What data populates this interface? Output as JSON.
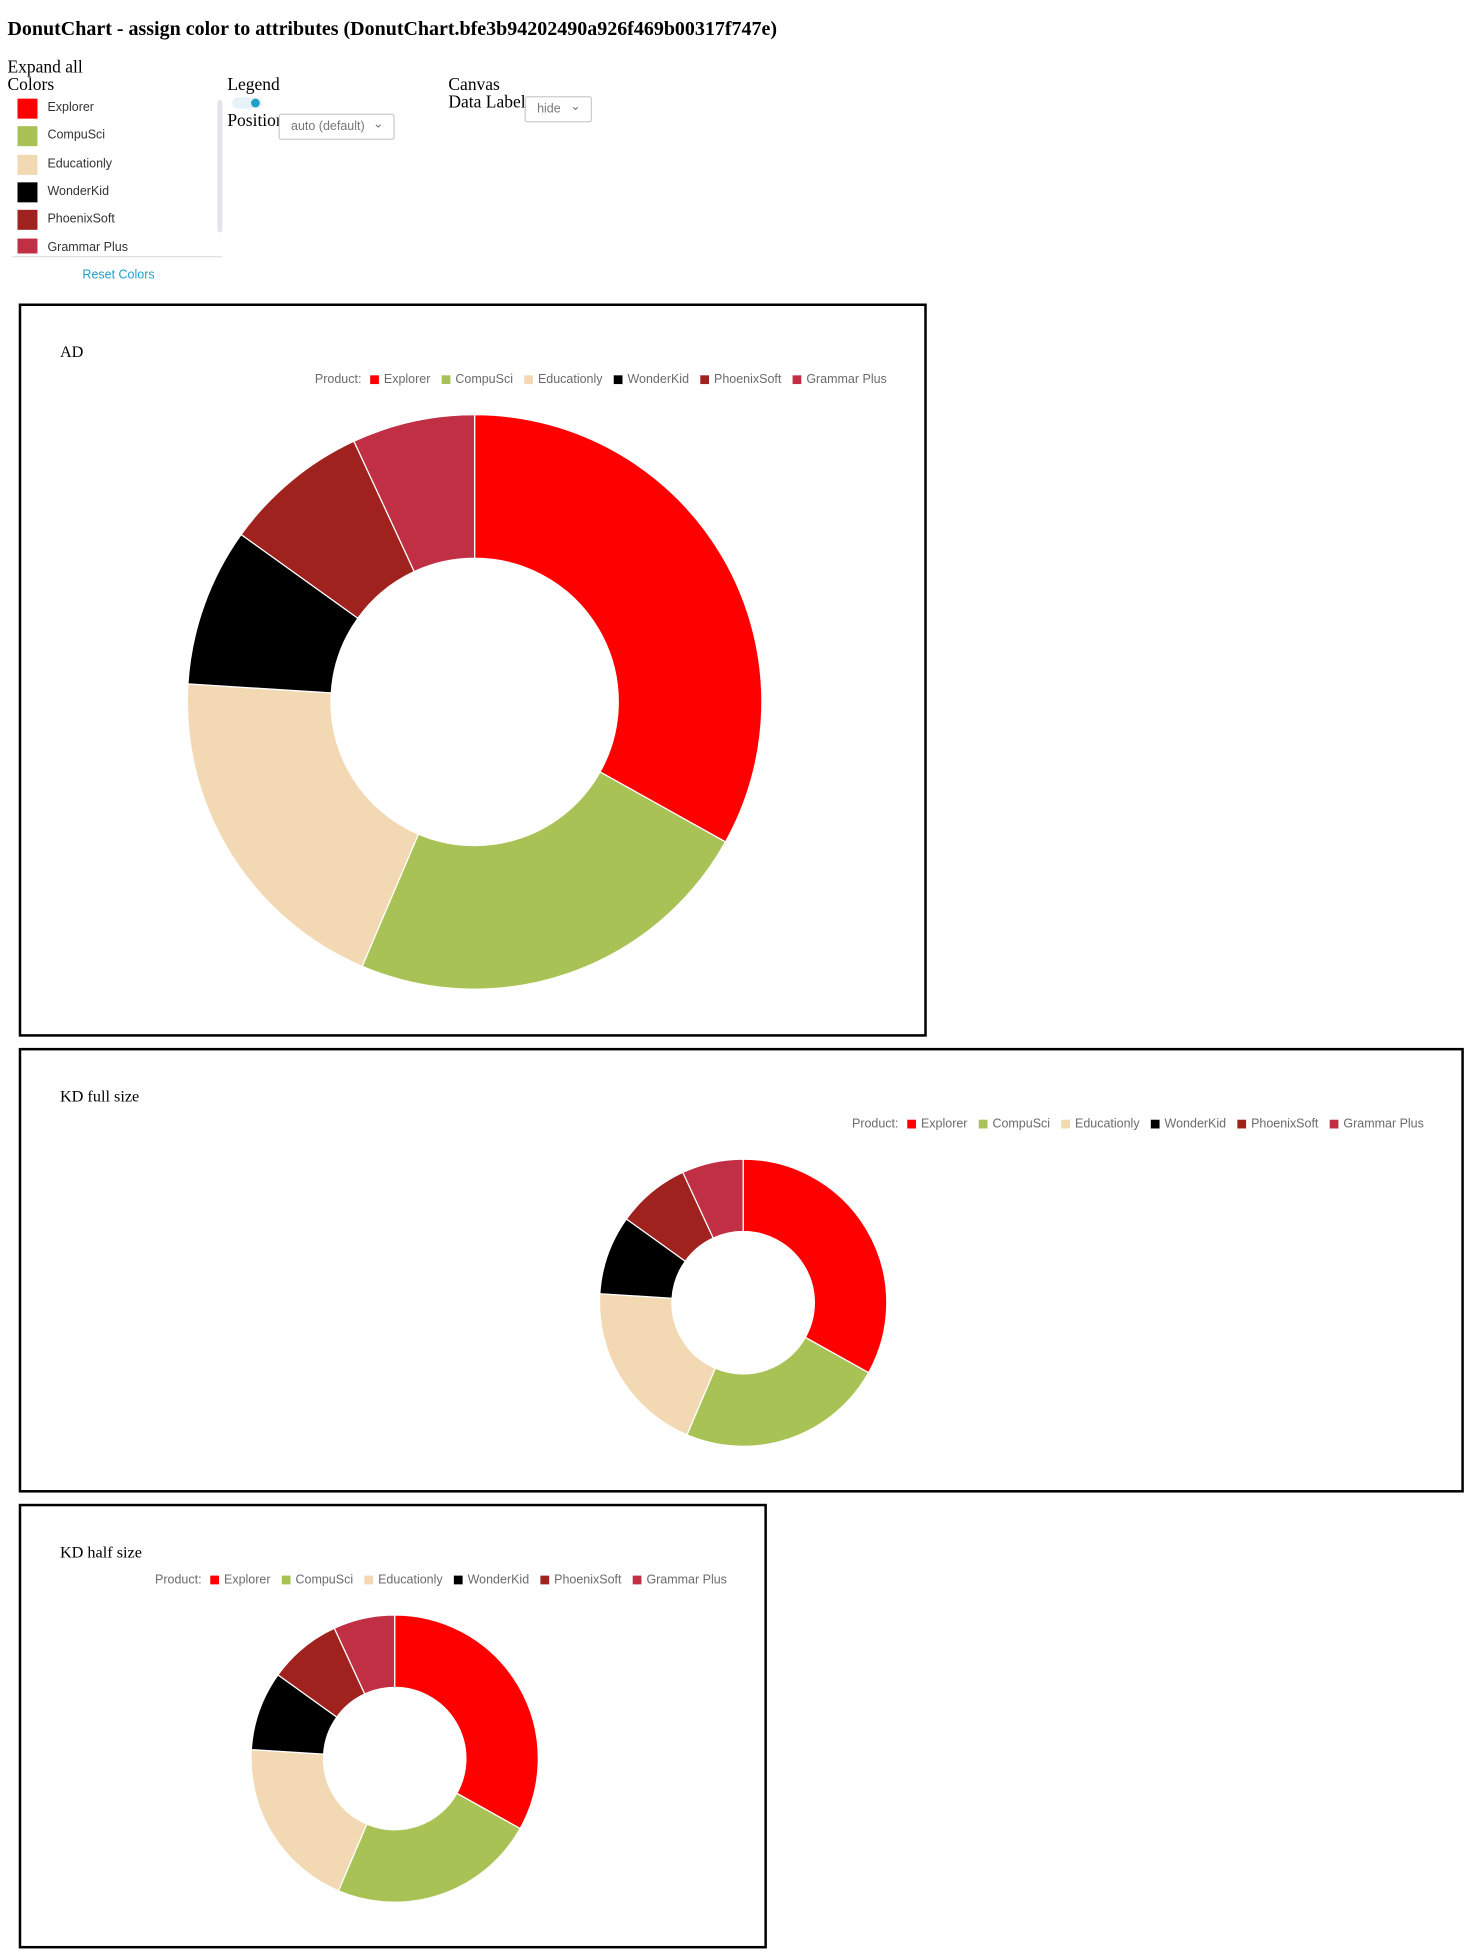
{
  "header": {
    "title": "DonutChart - assign color to attributes (DonutChart.bfe3b94202490a926f469b00317f747e)"
  },
  "controls": {
    "expand_all": "Expand all",
    "colors_label": "Colors",
    "color_items": [
      {
        "name": "Explorer",
        "color": "#ff0000"
      },
      {
        "name": "CompuSci",
        "color": "#a9c256"
      },
      {
        "name": "Educationly",
        "color": "#f2d9b3"
      },
      {
        "name": "WonderKid",
        "color": "#000000"
      },
      {
        "name": "PhoenixSoft",
        "color": "#a0221f"
      },
      {
        "name": "Grammar Plus",
        "color": "#c12f45"
      }
    ],
    "reset": "Reset Colors",
    "legend_label": "Legend",
    "position_label": "Position",
    "position_value": "auto (default)",
    "canvas_label": "Canvas",
    "data_labels_label": "Data Labels",
    "data_labels_value": "hide"
  },
  "chart_data": [
    {
      "type": "donut",
      "title": "AD",
      "legend_title": "Product:",
      "legend": "top-right",
      "categories": [
        "Explorer",
        "CompuSci",
        "Educationly",
        "WonderKid",
        "PhoenixSoft",
        "Grammar Plus"
      ],
      "colors": [
        "#ff0000",
        "#a9c256",
        "#f2d9b3",
        "#000000",
        "#a0221f",
        "#c12f45"
      ],
      "values": [
        33.1,
        23.3,
        19.6,
        8.9,
        8.2,
        6.9
      ]
    },
    {
      "type": "donut",
      "title": "KD full size",
      "legend_title": "Product:",
      "legend": "top-right",
      "categories": [
        "Explorer",
        "CompuSci",
        "Educationly",
        "WonderKid",
        "PhoenixSoft",
        "Grammar Plus"
      ],
      "colors": [
        "#ff0000",
        "#a9c256",
        "#f2d9b3",
        "#000000",
        "#a0221f",
        "#c12f45"
      ],
      "values": [
        33.1,
        23.3,
        19.6,
        8.9,
        8.2,
        6.9
      ]
    },
    {
      "type": "donut",
      "title": "KD half size",
      "legend_title": "Product:",
      "legend": "top-right",
      "categories": [
        "Explorer",
        "CompuSci",
        "Educationly",
        "WonderKid",
        "PhoenixSoft",
        "Grammar Plus"
      ],
      "colors": [
        "#ff0000",
        "#a9c256",
        "#f2d9b3",
        "#000000",
        "#a0221f",
        "#c12f45"
      ],
      "values": [
        33.1,
        23.3,
        19.6,
        8.9,
        8.2,
        6.9
      ]
    }
  ]
}
